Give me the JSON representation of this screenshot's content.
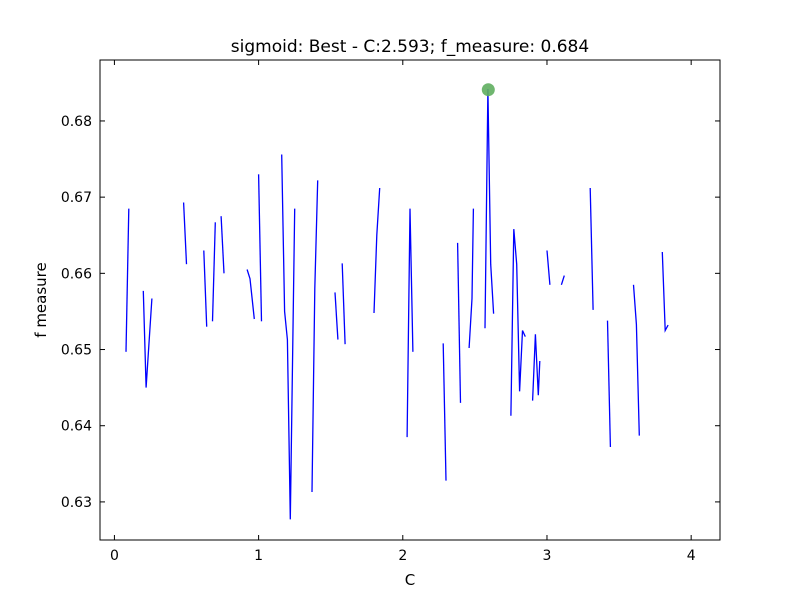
{
  "chart_data": {
    "type": "line",
    "title": "sigmoid: Best - C:2.593; f_measure: 0.684",
    "xlabel": "C",
    "ylabel": "f measure",
    "xlim": [
      -0.1,
      4.2
    ],
    "ylim": [
      0.625,
      0.688
    ],
    "x_ticks": [
      0,
      1,
      2,
      3,
      4
    ],
    "x_tick_labels": [
      "0",
      "1",
      "2",
      "3",
      "4"
    ],
    "y_ticks": [
      0.63,
      0.64,
      0.65,
      0.66,
      0.67,
      0.68
    ],
    "y_tick_labels": [
      "0.63",
      "0.64",
      "0.65",
      "0.66",
      "0.67",
      "0.68"
    ],
    "grid": false,
    "series": [
      {
        "color": "#0000ff",
        "segments": [
          [
            [
              0.08,
              0.6497
            ],
            [
              0.1,
              0.6685
            ]
          ],
          [
            [
              0.2,
              0.6577
            ],
            [
              0.22,
              0.645
            ],
            [
              0.26,
              0.6567
            ]
          ],
          [
            [
              0.48,
              0.6693
            ],
            [
              0.5,
              0.6612
            ]
          ],
          [
            [
              0.62,
              0.663
            ],
            [
              0.64,
              0.653
            ]
          ],
          [
            [
              0.68,
              0.6537
            ],
            [
              0.7,
              0.6667
            ]
          ],
          [
            [
              0.74,
              0.6675
            ],
            [
              0.76,
              0.66
            ]
          ],
          [
            [
              0.92,
              0.6605
            ],
            [
              0.94,
              0.6593
            ],
            [
              0.97,
              0.654
            ]
          ],
          [
            [
              1.0,
              0.673
            ],
            [
              1.02,
              0.6537
            ]
          ],
          [
            [
              1.16,
              0.6756
            ],
            [
              1.18,
              0.655
            ],
            [
              1.2,
              0.6513
            ],
            [
              1.22,
              0.6277
            ],
            [
              1.25,
              0.6685
            ]
          ],
          [
            [
              1.37,
              0.6313
            ],
            [
              1.39,
              0.658
            ],
            [
              1.41,
              0.6722
            ]
          ],
          [
            [
              1.53,
              0.6575
            ],
            [
              1.55,
              0.6513
            ]
          ],
          [
            [
              1.58,
              0.6613
            ],
            [
              1.6,
              0.6507
            ]
          ],
          [
            [
              1.8,
              0.6548
            ],
            [
              1.82,
              0.665
            ],
            [
              1.84,
              0.6712
            ]
          ],
          [
            [
              2.03,
              0.6385
            ],
            [
              2.05,
              0.6685
            ],
            [
              2.07,
              0.6497
            ]
          ],
          [
            [
              2.28,
              0.6508
            ],
            [
              2.3,
              0.6328
            ]
          ],
          [
            [
              2.38,
              0.664
            ],
            [
              2.4,
              0.643
            ]
          ],
          [
            [
              2.46,
              0.6502
            ],
            [
              2.48,
              0.6567
            ],
            [
              2.49,
              0.6685
            ]
          ],
          [
            [
              2.57,
              0.6528
            ],
            [
              2.59,
              0.6842
            ],
            [
              2.61,
              0.6612
            ],
            [
              2.63,
              0.6547
            ]
          ],
          [
            [
              2.75,
              0.6413
            ],
            [
              2.77,
              0.6658
            ],
            [
              2.79,
              0.6612
            ],
            [
              2.81,
              0.6445
            ],
            [
              2.83,
              0.6525
            ],
            [
              2.85,
              0.6517
            ]
          ],
          [
            [
              2.9,
              0.6433
            ],
            [
              2.92,
              0.652
            ],
            [
              2.94,
              0.644
            ],
            [
              2.95,
              0.6485
            ]
          ],
          [
            [
              3.0,
              0.663
            ],
            [
              3.02,
              0.6585
            ]
          ],
          [
            [
              3.1,
              0.6585
            ],
            [
              3.12,
              0.6597
            ]
          ],
          [
            [
              3.3,
              0.6712
            ],
            [
              3.32,
              0.6552
            ]
          ],
          [
            [
              3.42,
              0.6538
            ],
            [
              3.44,
              0.6372
            ]
          ],
          [
            [
              3.6,
              0.6585
            ],
            [
              3.62,
              0.6533
            ],
            [
              3.64,
              0.6387
            ]
          ],
          [
            [
              3.8,
              0.6628
            ],
            [
              3.82,
              0.6525
            ],
            [
              3.84,
              0.6532
            ]
          ]
        ]
      }
    ],
    "best_point": {
      "x": 2.593,
      "y": 0.6841,
      "color": "#5fae5f"
    }
  }
}
